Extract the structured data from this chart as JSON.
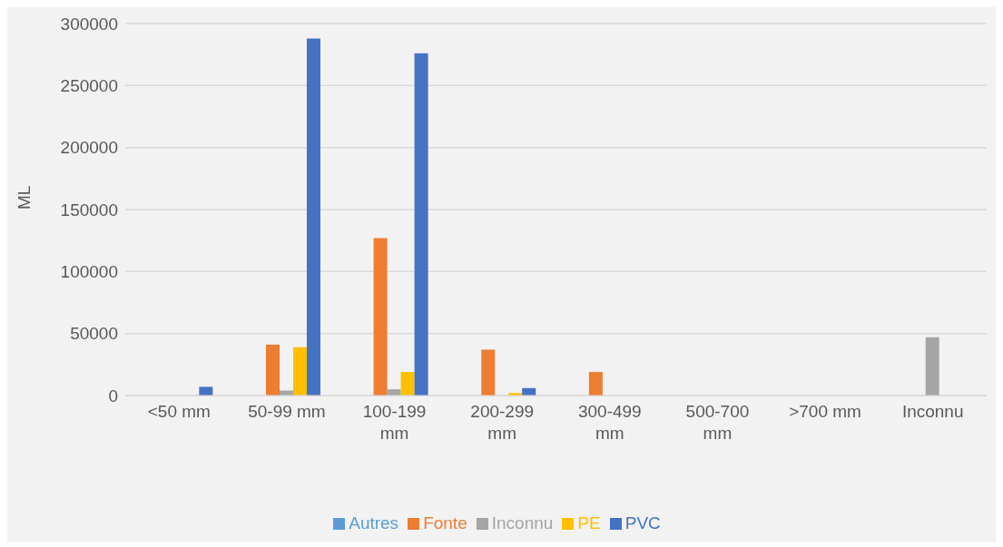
{
  "chart_data": {
    "type": "bar",
    "ylabel": "ML",
    "categories": [
      "<50 mm",
      "50-99 mm",
      "100-199 mm",
      "200-299 mm",
      "300-499 mm",
      "500-700 mm",
      ">700 mm",
      "Inconnu"
    ],
    "series": [
      {
        "name": "Autres",
        "color": "#5b9bd5",
        "values": [
          0,
          0,
          0,
          0,
          0,
          0,
          0,
          0
        ]
      },
      {
        "name": "Fonte",
        "color": "#ed7d31",
        "values": [
          0,
          41000,
          127000,
          37000,
          19000,
          0,
          0,
          0
        ]
      },
      {
        "name": "Inconnu",
        "color": "#a5a5a5",
        "values": [
          0,
          4000,
          5000,
          0,
          0,
          0,
          0,
          47000
        ]
      },
      {
        "name": "PE",
        "color": "#ffc000",
        "values": [
          0,
          39000,
          19000,
          2000,
          0,
          0,
          0,
          0
        ]
      },
      {
        "name": "PVC",
        "color": "#4472c4",
        "values": [
          7000,
          288000,
          276000,
          6000,
          0,
          0,
          0,
          0
        ]
      }
    ],
    "ylim": [
      0,
      300000
    ],
    "yticks": [
      0,
      50000,
      100000,
      150000,
      200000,
      250000,
      300000
    ],
    "grid": "y",
    "legend": "bottom"
  }
}
